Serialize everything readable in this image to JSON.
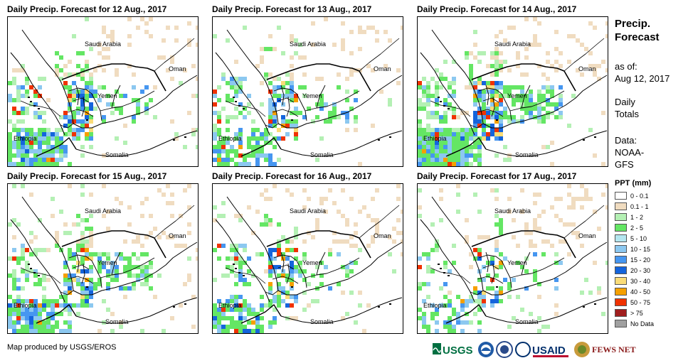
{
  "panels": [
    {
      "title": "Daily Precip. Forecast for 12 Aug., 2017",
      "seed": 12
    },
    {
      "title": "Daily Precip. Forecast for 13 Aug., 2017",
      "seed": 13
    },
    {
      "title": "Daily Precip. Forecast for 14 Aug., 2017",
      "seed": 14
    },
    {
      "title": "Daily Precip. Forecast for 15 Aug., 2017",
      "seed": 15
    },
    {
      "title": "Daily Precip. Forecast for 16 Aug., 2017",
      "seed": 16
    },
    {
      "title": "Daily Precip. Forecast for 17 Aug., 2017",
      "seed": 17
    }
  ],
  "map_labels": {
    "saudi": "Saudi Arabia",
    "oman": "Oman",
    "yemen": "Yemen",
    "ethiopia": "Ethiopia",
    "somalia": "Somalia"
  },
  "sidebar": {
    "title_line1": "Precip.",
    "title_line2": "Forecast",
    "asof_line1": "as of:",
    "asof_line2": "Aug 12, 2017",
    "daily_line1": "Daily",
    "daily_line2": "Totals",
    "data_line1": "Data:",
    "data_line2": "NOAA-",
    "data_line3": "GFS"
  },
  "legend": {
    "title": "PPT (mm)",
    "items": [
      {
        "label": "0 - 0.1",
        "color": "#ffffff"
      },
      {
        "label": "0.1 - 1",
        "color": "#f0dcc0"
      },
      {
        "label": "1 - 2",
        "color": "#b4f0b4"
      },
      {
        "label": "2 - 5",
        "color": "#64e664"
      },
      {
        "label": "5 - 10",
        "color": "#b4e6f0"
      },
      {
        "label": "10 - 15",
        "color": "#8cc8f0"
      },
      {
        "label": "15 - 20",
        "color": "#4696f0"
      },
      {
        "label": "20 - 30",
        "color": "#1464dc"
      },
      {
        "label": "30 - 40",
        "color": "#fadc78"
      },
      {
        "label": "40 - 50",
        "color": "#f5a000"
      },
      {
        "label": "50 - 75",
        "color": "#f03200"
      },
      {
        "label": "> 75",
        "color": "#a01e1e"
      },
      {
        "label": "No Data",
        "color": "#a0a0a0"
      }
    ]
  },
  "footer": "Map produced by USGS/EROS",
  "logos": {
    "usgs": "USGS",
    "usaid": "USAID",
    "fews": "FEWS NET"
  }
}
